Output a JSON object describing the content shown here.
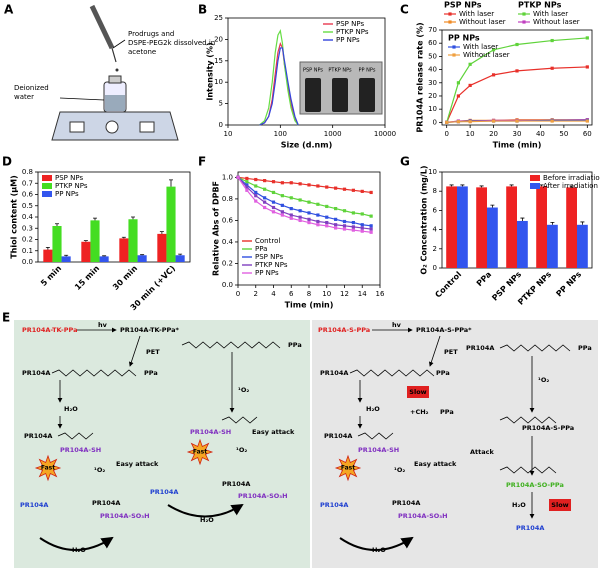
{
  "panel_a": {
    "panel": "A",
    "reagent_label": [
      "Prodrugs and",
      "DSPE-PEG2k dissolved in",
      "acetone"
    ],
    "water_label": [
      "Deionized",
      "water"
    ]
  },
  "chart_data": [
    {
      "panel": "B",
      "type": "line",
      "xscale": "log",
      "x_label": "Size (d.nm)",
      "y_label": "Intensity (%)",
      "x": [
        40,
        50,
        60,
        70,
        80,
        90,
        100,
        110,
        120,
        140,
        160,
        190,
        220
      ],
      "series": [
        {
          "name": "PSP NPs",
          "color": "#e8384f",
          "values": [
            0,
            0.5,
            2,
            6,
            12,
            17,
            19,
            18,
            14,
            9,
            5,
            1.5,
            0
          ]
        },
        {
          "name": "PTKP NPs",
          "color": "#66dd44",
          "values": [
            0,
            1,
            4,
            10,
            17,
            21,
            22,
            19,
            14,
            8,
            4,
            1,
            0
          ]
        },
        {
          "name": "PP NPs",
          "color": "#3344dd",
          "values": [
            0,
            0.5,
            2,
            5,
            10,
            15,
            18,
            18,
            15,
            10,
            6,
            2,
            0
          ]
        }
      ],
      "xlim": [
        10,
        10000
      ],
      "xticks": [
        10,
        100,
        1000,
        10000
      ],
      "ylim": [
        0,
        25
      ],
      "yticks": [
        0,
        5,
        10,
        15,
        20,
        25
      ],
      "legend": "upper right",
      "inset_labels": [
        "PSP NPs",
        "PTKP NPs",
        "PP NPs"
      ]
    },
    {
      "panel": "C",
      "type": "line",
      "markers": true,
      "x_label": "Time (min)",
      "y_label": "PR104A release rate (%)",
      "x": [
        0,
        5,
        10,
        20,
        30,
        45,
        60
      ],
      "legend_titles": [
        "PSP NPs",
        "PTKP NPs",
        "PP NPs"
      ],
      "series": [
        {
          "name": "With laser",
          "color": "#e8302a",
          "values": [
            0,
            20,
            28,
            36,
            39,
            41,
            42
          ]
        },
        {
          "name": "Without laser",
          "color": "#f08a24",
          "values": [
            0,
            1,
            1.5,
            1.5,
            2,
            2,
            2
          ]
        },
        {
          "name": "With laser",
          "color": "#5fd33a",
          "values": [
            0,
            30,
            44,
            55,
            59,
            62,
            64
          ]
        },
        {
          "name": "Without laser",
          "color": "#c040c0",
          "values": [
            0,
            1,
            1,
            1.5,
            1.5,
            1.5,
            2
          ]
        },
        {
          "name": "With laser",
          "color": "#3050e0",
          "values": [
            0,
            0.5,
            1,
            1,
            1,
            1.5,
            1.5
          ]
        },
        {
          "name": "Without laser",
          "color": "#f0a040",
          "values": [
            0,
            0.5,
            0.5,
            1,
            1,
            1,
            1
          ]
        }
      ],
      "xlim": [
        -2,
        62
      ],
      "xticks": [
        0,
        10,
        20,
        30,
        40,
        50,
        60
      ],
      "ylim": [
        -2,
        70
      ],
      "yticks": [
        0,
        10,
        20,
        30,
        40,
        50,
        60,
        70
      ]
    },
    {
      "panel": "D",
      "type": "bar",
      "y_label": "Thiol content (μM)",
      "categories": [
        "5 min",
        "15 min",
        "30 min",
        "30 min (+VC)"
      ],
      "series": [
        {
          "name": "PSP NPs",
          "color": "#ee2222",
          "values": [
            0.11,
            0.18,
            0.21,
            0.25
          ],
          "errors": [
            0.02,
            0.01,
            0.01,
            0.02
          ]
        },
        {
          "name": "PTKP NPs",
          "color": "#44dd22",
          "values": [
            0.32,
            0.37,
            0.38,
            0.67
          ],
          "errors": [
            0.02,
            0.02,
            0.02,
            0.06
          ]
        },
        {
          "name": "PP NPs",
          "color": "#3355ee",
          "values": [
            0.05,
            0.05,
            0.06,
            0.06
          ],
          "errors": [
            0.01,
            0.005,
            0.005,
            0.01
          ]
        }
      ],
      "ylim": [
        0,
        0.8
      ],
      "yticks": [
        {
          "value": 0,
          "label": "0.0"
        },
        0.1,
        0.2,
        0.3,
        0.4,
        0.5,
        0.6,
        0.7,
        0.8
      ],
      "legend": "upper left"
    },
    {
      "panel": "F",
      "type": "line",
      "markers": true,
      "x_label": "Time (min)",
      "y_label": "Relative Abs of DPBF",
      "x": [
        0,
        1,
        2,
        3,
        4,
        5,
        6,
        7,
        8,
        9,
        10,
        11,
        12,
        13,
        14,
        15
      ],
      "series": [
        {
          "name": "Control",
          "color": "#e8302a",
          "values": [
            1.0,
            0.99,
            0.98,
            0.97,
            0.96,
            0.95,
            0.95,
            0.94,
            0.93,
            0.92,
            0.91,
            0.9,
            0.89,
            0.88,
            0.87,
            0.86
          ]
        },
        {
          "name": "PPa",
          "color": "#5fd33a",
          "values": [
            1.0,
            0.96,
            0.92,
            0.89,
            0.86,
            0.83,
            0.81,
            0.79,
            0.77,
            0.75,
            0.73,
            0.71,
            0.69,
            0.67,
            0.66,
            0.64
          ]
        },
        {
          "name": "PSP NPs",
          "color": "#3050e0",
          "values": [
            1.0,
            0.93,
            0.86,
            0.81,
            0.77,
            0.74,
            0.71,
            0.69,
            0.67,
            0.65,
            0.63,
            0.61,
            0.59,
            0.58,
            0.56,
            0.55
          ]
        },
        {
          "name": "PTKP NPs",
          "color": "#8040c0",
          "values": [
            1.0,
            0.91,
            0.83,
            0.77,
            0.72,
            0.68,
            0.65,
            0.63,
            0.61,
            0.59,
            0.58,
            0.56,
            0.55,
            0.54,
            0.53,
            0.52
          ]
        },
        {
          "name": "PP NPs",
          "color": "#e060e0",
          "values": [
            1.0,
            0.88,
            0.78,
            0.72,
            0.68,
            0.65,
            0.62,
            0.6,
            0.58,
            0.56,
            0.55,
            0.53,
            0.52,
            0.51,
            0.5,
            0.49
          ]
        }
      ],
      "xlim": [
        0,
        16
      ],
      "xticks": [
        0,
        2,
        4,
        6,
        8,
        10,
        12,
        14,
        16
      ],
      "ylim": [
        0,
        1.05
      ],
      "yticks": [
        {
          "value": 0,
          "label": "0.0"
        },
        0.2,
        0.4,
        0.6,
        0.8,
        {
          "value": 1,
          "label": "1.0"
        }
      ],
      "legend": "lower left"
    },
    {
      "panel": "G",
      "type": "bar",
      "y_label": "O₂ Concentration (mg/L)",
      "categories": [
        "Control",
        "PPa",
        "PSP NPs",
        "PTKP NPs",
        "PP NPs"
      ],
      "series": [
        {
          "name": "Before irradiation",
          "color": "#ee2222",
          "values": [
            8.5,
            8.4,
            8.5,
            8.5,
            8.4
          ],
          "errors": [
            0.15,
            0.15,
            0.15,
            0.15,
            0.15
          ]
        },
        {
          "name": "After irradiation",
          "color": "#3355ee",
          "values": [
            8.5,
            6.3,
            4.9,
            4.5,
            4.5
          ],
          "errors": [
            0.15,
            0.25,
            0.3,
            0.25,
            0.3
          ]
        }
      ],
      "ylim": [
        0,
        10
      ],
      "yticks": [
        0,
        2,
        4,
        6,
        8,
        10
      ],
      "legend": "upper right"
    }
  ],
  "panel_e": {
    "panel": "E",
    "labels": [
      {
        "text": "PR104A-TK-PPa",
        "color": "#e02020"
      },
      {
        "text": "hv"
      },
      {
        "text": "PR104A-TK-PPa*"
      },
      {
        "text": "PET"
      },
      {
        "text": "PR104A"
      },
      {
        "text": "PPa"
      },
      {
        "text": "PPa"
      },
      {
        "text": "¹O₂"
      },
      {
        "text": "H₂O"
      },
      {
        "text": "PR104A"
      },
      {
        "text": "PR104A-SH",
        "color": "#8030c0"
      },
      {
        "text": "PR104A-SH",
        "color": "#8030c0"
      },
      {
        "text": "Fast",
        "badge": "burst"
      },
      {
        "text": "¹O₂"
      },
      {
        "text": "Easy attack"
      },
      {
        "text": "PR104A",
        "color": "#2040d0"
      },
      {
        "text": "PR104A"
      },
      {
        "text": "PR104A-SO₃H",
        "color": "#8030c0"
      },
      {
        "text": "H₂O"
      },
      {
        "text": "Fast",
        "badge": "burst"
      },
      {
        "text": "¹O₂"
      },
      {
        "text": "Easy attack"
      },
      {
        "text": "PR104A",
        "color": "#2040d0"
      },
      {
        "text": "PR104A"
      },
      {
        "text": "PR104A-SO₃H",
        "color": "#8030c0"
      },
      {
        "text": "H₂O"
      },
      {
        "text": "PR104A-S-PPa",
        "color": "#e02020"
      },
      {
        "text": "hv"
      },
      {
        "text": "PR104A-S-PPa*"
      },
      {
        "text": "PET"
      },
      {
        "text": "PR104A"
      },
      {
        "text": "PPa"
      },
      {
        "text": "Slow",
        "badge": "box"
      },
      {
        "text": "+CH₂"
      },
      {
        "text": "PPa"
      },
      {
        "text": "H₂O"
      },
      {
        "text": "PR104A"
      },
      {
        "text": "PR104A-SH",
        "color": "#8030c0"
      },
      {
        "text": "Fast",
        "badge": "burst"
      },
      {
        "text": "¹O₂"
      },
      {
        "text": "Easy attack"
      },
      {
        "text": "PR104A",
        "color": "#2040d0"
      },
      {
        "text": "PR104A"
      },
      {
        "text": "PR104A-SO₃H",
        "color": "#8030c0"
      },
      {
        "text": "H₂O"
      },
      {
        "text": "PR104A"
      },
      {
        "text": "PPa"
      },
      {
        "text": "¹O₂"
      },
      {
        "text": "PR104A-S-PPa"
      },
      {
        "text": "Attack"
      },
      {
        "text": "PR104A-SO-PPa",
        "color": "#40b020"
      },
      {
        "text": "H₂O"
      },
      {
        "text": "Slow",
        "badge": "box"
      },
      {
        "text": "PR104A",
        "color": "#2040d0"
      }
    ]
  }
}
